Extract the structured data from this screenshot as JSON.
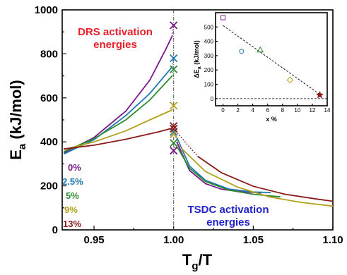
{
  "chart_data": [
    {
      "type": "line",
      "xlabel_main": "T",
      "xlabel_sub": "g",
      "xlabel_tail": "/T",
      "ylabel_main": "E",
      "ylabel_sub": "a",
      "ylabel_tail": " (kJ/mol)",
      "xlim": [
        0.93,
        1.1
      ],
      "ylim": [
        0,
        1000
      ],
      "xticks": [
        "0.95",
        "1.00",
        "1.05",
        "1.10"
      ],
      "xtick_values": [
        0.95,
        1.0,
        1.05,
        1.1
      ],
      "yticks": [
        "0",
        "200",
        "400",
        "600",
        "800",
        "1000"
      ],
      "ytick_values": [
        0,
        200,
        400,
        600,
        800,
        1000
      ],
      "reference_line_x": 1.0,
      "annotations": {
        "drs_line1": "DRS activation",
        "drs_line2": "energies",
        "tsdc_line1": "TSDC activation",
        "tsdc_line2": "energies"
      },
      "series": [
        {
          "name": "0%",
          "color": "#7a1a8a",
          "drs": [
            [
              0.931,
              350
            ],
            [
              0.95,
              420
            ],
            [
              0.97,
              540
            ],
            [
              0.985,
              680
            ],
            [
              0.995,
              820
            ],
            [
              0.999,
              880
            ]
          ],
          "drs_value": 930,
          "tsdc_values": [
            360
          ],
          "tsdc": [
            [
              1.002,
              400
            ],
            [
              1.01,
              270
            ],
            [
              1.02,
              210
            ],
            [
              1.03,
              185
            ],
            [
              1.04,
              175
            ],
            [
              1.055,
              168
            ]
          ]
        },
        {
          "name": "2.5%",
          "color": "#1f78b4",
          "drs": [
            [
              0.931,
              345
            ],
            [
              0.95,
              410
            ],
            [
              0.97,
              520
            ],
            [
              0.985,
              620
            ],
            [
              0.999,
              740
            ]
          ],
          "drs_value": 780,
          "tsdc_values": [
            445
          ],
          "tsdc": [
            [
              1.002,
              420
            ],
            [
              1.01,
              290
            ],
            [
              1.02,
              225
            ],
            [
              1.035,
              185
            ],
            [
              1.05,
              172
            ],
            [
              1.061,
              170
            ]
          ]
        },
        {
          "name": "5%",
          "color": "#2e8b2e",
          "drs": [
            [
              0.931,
              355
            ],
            [
              0.95,
              415
            ],
            [
              0.97,
              500
            ],
            [
              0.985,
              590
            ],
            [
              0.999,
              700
            ]
          ],
          "drs_value": 730,
          "tsdc_values": [
            395
          ],
          "tsdc": [
            [
              1.002,
              380
            ],
            [
              1.01,
              280
            ],
            [
              1.02,
              220
            ],
            [
              1.035,
              180
            ],
            [
              1.05,
              162
            ],
            [
              1.067,
              150
            ]
          ]
        },
        {
          "name": "9%",
          "color": "#b3a11c",
          "drs": [
            [
              0.931,
              365
            ],
            [
              0.95,
              400
            ],
            [
              0.97,
              450
            ],
            [
              0.985,
              500
            ],
            [
              0.999,
              545
            ]
          ],
          "drs_value": 565,
          "tsdc_values": [
            435
          ],
          "tsdc": [
            [
              1.005,
              370
            ],
            [
              1.02,
              265
            ],
            [
              1.04,
              195
            ],
            [
              1.06,
              150
            ],
            [
              1.08,
              125
            ],
            [
              1.1,
              108
            ]
          ]
        },
        {
          "name": "13%",
          "color": "#8b1a1a",
          "drs": [
            [
              0.931,
              368
            ],
            [
              0.95,
              385
            ],
            [
              0.97,
              412
            ],
            [
              0.99,
              445
            ],
            [
              0.999,
              462
            ]
          ],
          "drs_value": 472,
          "tsdc_values": [
            460
          ],
          "tsdc": [
            [
              1.015,
              335
            ],
            [
              1.03,
              260
            ],
            [
              1.05,
              198
            ],
            [
              1.07,
              162
            ],
            [
              1.09,
              140
            ],
            [
              1.1,
              130
            ]
          ]
        }
      ]
    },
    {
      "type": "scatter",
      "xlabel": "x %",
      "ylabel_main": "ΔE",
      "ylabel_sub": "a",
      "ylabel_tail": " (kJ/mol)",
      "xlim": [
        -1,
        14
      ],
      "ylim": [
        -50,
        600
      ],
      "xticks": [
        "0",
        "2",
        "4",
        "6",
        "8",
        "10",
        "12",
        "14"
      ],
      "xtick_values": [
        0,
        2,
        4,
        6,
        8,
        10,
        12,
        14
      ],
      "yticks": [
        "0",
        "100",
        "200",
        "300",
        "400",
        "500"
      ],
      "ytick_values": [
        0,
        100,
        200,
        300,
        400,
        500
      ],
      "fit_line": [
        [
          0,
          510
        ],
        [
          13,
          30
        ]
      ],
      "zero_line": 0,
      "points": [
        {
          "x": 0,
          "y": 565,
          "marker": "square",
          "color": "#7a1a8a"
        },
        {
          "x": 2.5,
          "y": 330,
          "marker": "circle",
          "color": "#1f78b4"
        },
        {
          "x": 5,
          "y": 340,
          "marker": "triangle",
          "color": "#2e8b2e"
        },
        {
          "x": 9,
          "y": 130,
          "marker": "diamond",
          "color": "#b3a11c"
        },
        {
          "x": 13,
          "y": 25,
          "marker": "star",
          "color": "#8b1a1a"
        }
      ]
    }
  ]
}
